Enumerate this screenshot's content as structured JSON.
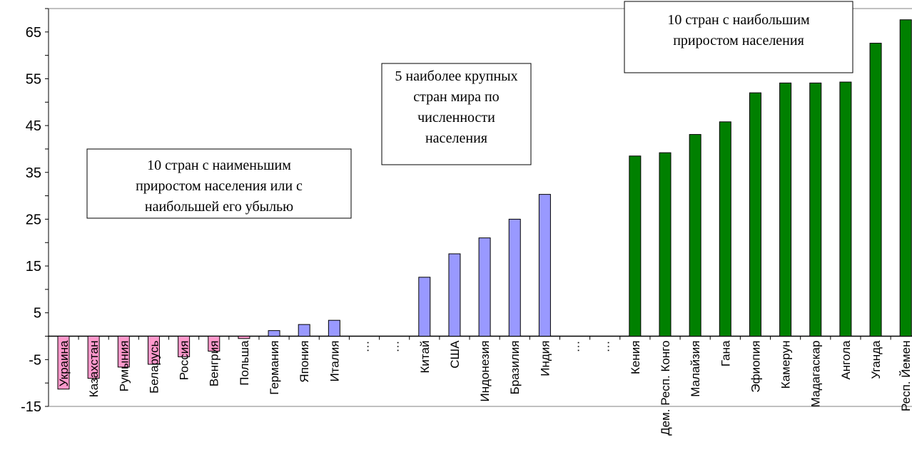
{
  "chart_data": {
    "type": "bar",
    "title": "",
    "xlabel": "",
    "ylabel": "",
    "ylim": [
      -15,
      70
    ],
    "yticks": [
      -15,
      -5,
      5,
      15,
      25,
      35,
      45,
      55,
      65
    ],
    "grid": false,
    "categories": [
      "Украина",
      "Казахстан",
      "Румыния",
      "Беларусь",
      "Россия",
      "Венгрия",
      "Польша",
      "Германия",
      "Япония",
      "Италия",
      "…",
      "…",
      "Китай",
      "США",
      "Индонезия",
      "Бразилия",
      "Индия",
      "…",
      "…",
      "Кения",
      "Дем. Респ. Конго",
      "Малайзия",
      "Гана",
      "Эфиопия",
      "Камерун",
      "Мадагаскар",
      "Ангола",
      "Уганда",
      "Респ. Йемен"
    ],
    "values": [
      -11.3,
      -9.0,
      -6.6,
      -6.0,
      -4.4,
      -3.2,
      -0.5,
      1.2,
      2.5,
      3.4,
      null,
      null,
      12.6,
      17.6,
      21.0,
      25.0,
      30.3,
      null,
      null,
      38.5,
      39.2,
      43.1,
      45.8,
      52.0,
      54.1,
      54.1,
      54.3,
      62.6,
      67.6
    ],
    "groups": [
      {
        "color": "#ff99cc",
        "indices": [
          0,
          1,
          2,
          3,
          4,
          5,
          6
        ]
      },
      {
        "color": "#9999ff",
        "indices": [
          7,
          8,
          9,
          12,
          13,
          14,
          15,
          16
        ]
      },
      {
        "color": "#008000",
        "indices": [
          19,
          20,
          21,
          22,
          23,
          24,
          25,
          26,
          27,
          28
        ]
      }
    ],
    "annotations": [
      {
        "lines": [
          "10 стран с наименьшим",
          "приростом населения или с",
          "наибольшей его убылью"
        ]
      },
      {
        "lines": [
          "5 наиболее крупных",
          "стран мира по",
          "численности",
          "населения"
        ]
      },
      {
        "lines": [
          "10 стран с наибольшим",
          "приростом населения"
        ]
      }
    ]
  }
}
